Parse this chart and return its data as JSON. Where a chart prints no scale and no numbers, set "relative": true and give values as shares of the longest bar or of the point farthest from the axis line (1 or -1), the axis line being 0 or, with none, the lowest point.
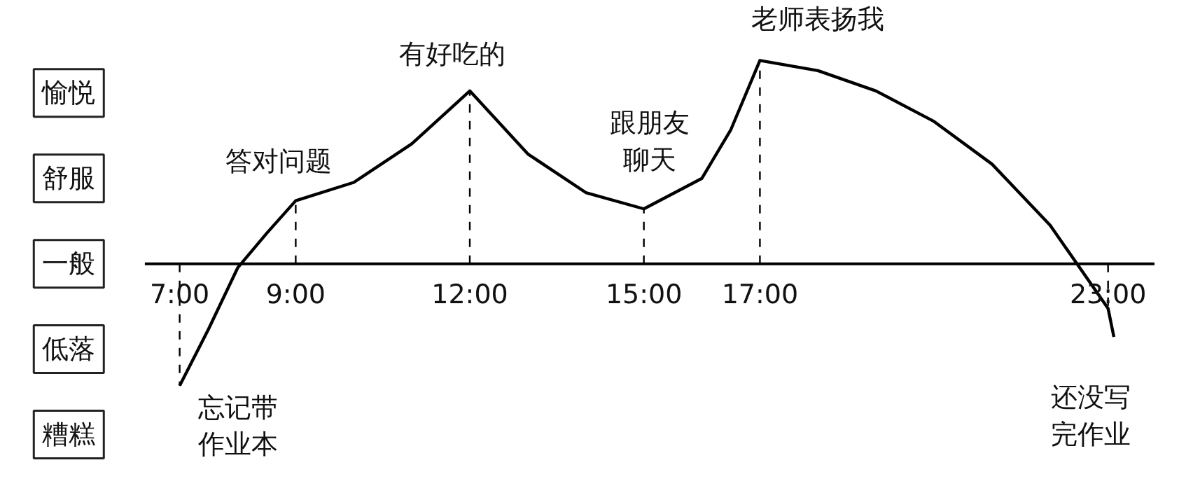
{
  "chart_data": {
    "type": "line",
    "relative": true,
    "x": [
      7,
      7.5,
      8,
      8.5,
      9,
      10,
      11,
      12,
      13,
      14,
      15,
      16,
      16.5,
      17,
      18,
      19,
      20,
      21,
      22,
      23,
      23.1
    ],
    "values": [
      -0.6,
      -0.32,
      -0.02,
      0.15,
      0.31,
      0.4,
      0.59,
      0.85,
      0.54,
      0.35,
      0.27,
      0.42,
      0.66,
      1,
      0.95,
      0.85,
      0.7,
      0.49,
      0.19,
      -0.22,
      -0.36
    ],
    "color": "#000000",
    "xlim": [
      6.4,
      23.8
    ],
    "xticks": [
      {
        "value": 7,
        "label": "7:00"
      },
      {
        "value": 9,
        "label": "9:00"
      },
      {
        "value": 12,
        "label": "12:00"
      },
      {
        "value": 15,
        "label": "15:00"
      },
      {
        "value": 17,
        "label": "17:00"
      },
      {
        "value": 23,
        "label": "23:00"
      }
    ],
    "ref_lines": [
      {
        "axis": "x",
        "value": 7,
        "line_style": "dashed"
      },
      {
        "axis": "x",
        "value": 9,
        "line_style": "dashed"
      },
      {
        "axis": "x",
        "value": 12,
        "line_style": "dashed"
      },
      {
        "axis": "x",
        "value": 15,
        "line_style": "dashed"
      },
      {
        "axis": "x",
        "value": 17,
        "line_style": "dashed"
      },
      {
        "axis": "x",
        "value": 23,
        "line_style": "dashed"
      }
    ],
    "annotations": [
      "愉悦",
      "舒服",
      "一般",
      "低落",
      "糟糕",
      "答对问题",
      "有好吃的",
      "跟朋友聊天",
      "老师表扬我",
      "忘记带作业本",
      "还没写完作业"
    ]
  }
}
